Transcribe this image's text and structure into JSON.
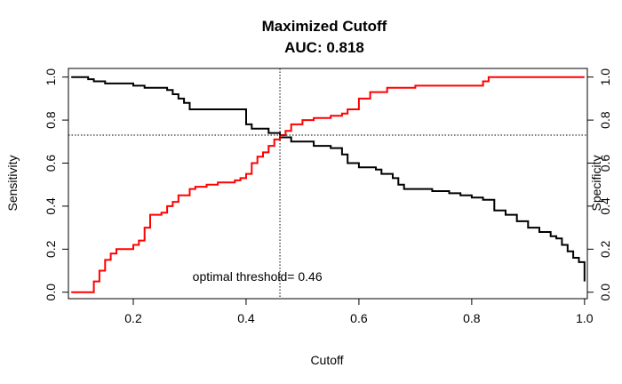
{
  "chart_data": {
    "type": "line",
    "title": "Maximized Cutoff",
    "subtitle": "AUC:  0.818",
    "xlabel": "Cutoff",
    "ylabel": "Sensitivity",
    "y2label": "Specificity",
    "xlim": [
      0.085,
      1.005
    ],
    "ylim": [
      -0.03,
      1.04
    ],
    "x_ticks": [
      0.2,
      0.4,
      0.6,
      0.8,
      1.0
    ],
    "x_tick_labels": [
      "0.2",
      "0.4",
      "0.6",
      "0.8",
      "1.0"
    ],
    "y_ticks": [
      0.0,
      0.2,
      0.4,
      0.6,
      0.8,
      1.0
    ],
    "y_tick_labels": [
      "0.0",
      "0.2",
      "0.4",
      "0.6",
      "0.8",
      "1.0"
    ],
    "y2_ticks": [
      0.0,
      0.2,
      0.4,
      0.6,
      0.8,
      1.0
    ],
    "y2_tick_labels": [
      "0.0",
      "0.2",
      "0.4",
      "0.6",
      "0.8",
      "1.0"
    ],
    "optimal_threshold": 0.46,
    "optimal_value": 0.73,
    "annotation": "optimal threshold= 0.46",
    "colors": {
      "sensitivity": "#000000",
      "specificity": "#ff0000"
    },
    "series": [
      {
        "key": "sensitivity",
        "x": [
          0.09,
          0.12,
          0.13,
          0.15,
          0.2,
          0.22,
          0.26,
          0.27,
          0.28,
          0.29,
          0.3,
          0.35,
          0.39,
          0.4,
          0.41,
          0.44,
          0.46,
          0.48,
          0.5,
          0.52,
          0.55,
          0.57,
          0.58,
          0.6,
          0.63,
          0.64,
          0.66,
          0.67,
          0.68,
          0.7,
          0.73,
          0.76,
          0.78,
          0.8,
          0.82,
          0.84,
          0.86,
          0.88,
          0.9,
          0.92,
          0.94,
          0.95,
          0.96,
          0.97,
          0.98,
          0.99,
          1.0,
          1.0
        ],
        "y": [
          1.0,
          0.99,
          0.98,
          0.97,
          0.96,
          0.95,
          0.94,
          0.92,
          0.9,
          0.88,
          0.85,
          0.85,
          0.85,
          0.78,
          0.76,
          0.74,
          0.72,
          0.7,
          0.7,
          0.68,
          0.67,
          0.64,
          0.6,
          0.58,
          0.57,
          0.55,
          0.53,
          0.5,
          0.48,
          0.48,
          0.47,
          0.46,
          0.45,
          0.44,
          0.43,
          0.38,
          0.36,
          0.33,
          0.3,
          0.28,
          0.26,
          0.25,
          0.22,
          0.19,
          0.16,
          0.14,
          0.12,
          0.05
        ]
      },
      {
        "key": "specificity",
        "x": [
          0.09,
          0.12,
          0.13,
          0.14,
          0.15,
          0.16,
          0.17,
          0.2,
          0.21,
          0.22,
          0.23,
          0.25,
          0.26,
          0.27,
          0.28,
          0.3,
          0.31,
          0.33,
          0.35,
          0.38,
          0.39,
          0.4,
          0.41,
          0.42,
          0.43,
          0.44,
          0.45,
          0.46,
          0.47,
          0.48,
          0.5,
          0.52,
          0.55,
          0.57,
          0.58,
          0.6,
          0.62,
          0.65,
          0.7,
          0.8,
          0.82,
          0.83,
          0.9,
          1.0
        ],
        "y": [
          0.0,
          0.0,
          0.05,
          0.1,
          0.15,
          0.18,
          0.2,
          0.22,
          0.24,
          0.3,
          0.36,
          0.37,
          0.4,
          0.42,
          0.45,
          0.48,
          0.49,
          0.5,
          0.51,
          0.52,
          0.53,
          0.55,
          0.6,
          0.63,
          0.65,
          0.68,
          0.71,
          0.73,
          0.75,
          0.78,
          0.8,
          0.81,
          0.82,
          0.83,
          0.85,
          0.9,
          0.93,
          0.95,
          0.96,
          0.96,
          0.98,
          1.0,
          1.0,
          1.0
        ]
      }
    ]
  }
}
